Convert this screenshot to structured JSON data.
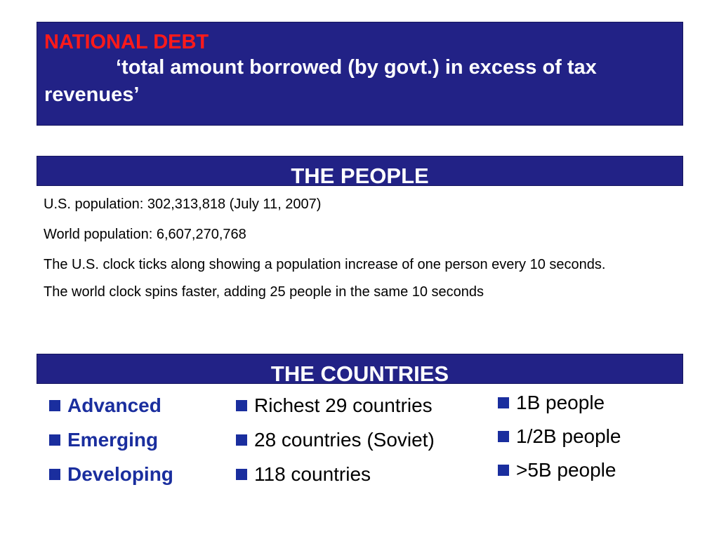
{
  "definition": {
    "title": "NATIONAL DEBT",
    "text": "‘total amount borrowed (by govt.) in excess of tax revenues’"
  },
  "people": {
    "header": "THE PEOPLE",
    "lines": [
      "U.S. population:  302,313,818 (July 11, 2007)",
      "World population: 6,607,270,768",
      "The U.S. clock ticks along showing a population increase of one person every 10 seconds.",
      "The world clock spins faster, adding 25 people in the same 10 seconds"
    ]
  },
  "countries": {
    "header": "THE COUNTRIES",
    "types": [
      "Advanced",
      "Emerging",
      "Developing"
    ],
    "descriptions": [
      "Richest 29 countries",
      "28 countries (Soviet)",
      "118 countries"
    ],
    "populations": [
      "1B people",
      "1/2B people",
      ">5B people"
    ]
  },
  "colors": {
    "box_background": "#222286",
    "title_red": "#ff1a1a",
    "bullet_blue": "#1a2e9e"
  }
}
